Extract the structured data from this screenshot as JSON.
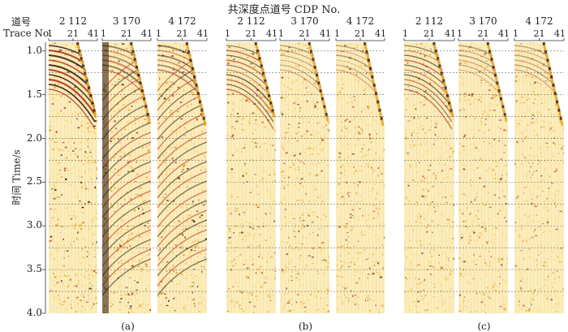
{
  "title": "共深度点道号 CDP No.",
  "trace_label_cn": "道号",
  "trace_label_en": "Trace No.",
  "y_label": "时间 Time/s",
  "y_ticks": [
    "1.0",
    "1.5",
    "2.0",
    "2.5",
    "3.0",
    "3.5",
    "4.0"
  ],
  "trace_ticks": [
    "1",
    "21",
    "41"
  ],
  "cdp_labels": [
    "2 112",
    "3 170",
    "4 172"
  ],
  "captions": [
    "(a)",
    "(b)",
    "(c)"
  ],
  "colors": {
    "dark": "#2a120a",
    "red": "#b0281a",
    "orange": "#e8a11e",
    "yellow": "#f6d36a",
    "pale": "#fbedbd"
  }
}
